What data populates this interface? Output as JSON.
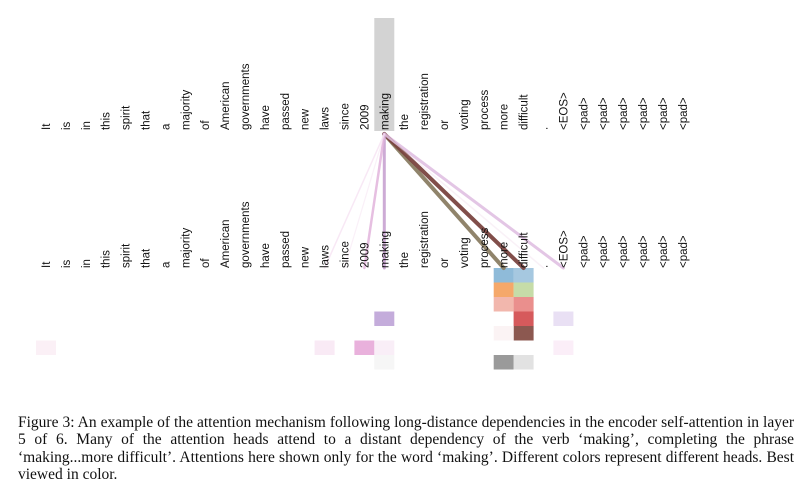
{
  "tokens": [
    "It",
    "is",
    "in",
    "this",
    "spirit",
    "that",
    "a",
    "majority",
    "of",
    "American",
    "governments",
    "have",
    "passed",
    "new",
    "laws",
    "since",
    "2009",
    "making",
    "the",
    "registration",
    "or",
    "voting",
    "process",
    "more",
    "difficult",
    ".",
    "<EOS>",
    "<pad>",
    "<pad>",
    "<pad>",
    "<pad>",
    "<pad>",
    "<pad>"
  ],
  "query_token": "making",
  "attention_links": [
    {
      "target": "more",
      "color": "#8a7d63",
      "opacity": 0.95,
      "width": 4
    },
    {
      "target": "difficult",
      "color": "#7a4540",
      "opacity": 0.95,
      "width": 4
    },
    {
      "target": "<EOS>",
      "color": "#d9b3dc",
      "opacity": 0.75,
      "width": 3
    },
    {
      "target": "making",
      "color": "#c8a2d0",
      "opacity": 0.9,
      "width": 3
    },
    {
      "target": "2009",
      "color": "#e2b4dc",
      "opacity": 0.85,
      "width": 2.5
    },
    {
      "target": "laws",
      "color": "#f3d9ef",
      "opacity": 0.6,
      "width": 1.5
    },
    {
      "target": "since",
      "color": "#f7e6f3",
      "opacity": 0.6,
      "width": 1.2
    },
    {
      "target": ".",
      "color": "#f0dceb",
      "opacity": 0.4,
      "width": 1.5
    }
  ],
  "heatmap_rows": [
    [
      [
        "more",
        "#8fbbd9"
      ],
      [
        "difficult",
        "#a6c8e0"
      ]
    ],
    [
      [
        "more",
        "#f5a86a"
      ],
      [
        "difficult",
        "#c6dca8"
      ]
    ],
    [
      [
        "more",
        "#f2b7ad"
      ],
      [
        "difficult",
        "#ea8f8d"
      ]
    ],
    [
      [
        "making",
        "#c4acdb"
      ],
      [
        "difficult",
        "#d65a5c"
      ],
      [
        "<EOS>",
        "#e9e0f4"
      ]
    ],
    [
      [
        "difficult",
        "#8c5850"
      ],
      [
        "more",
        "#fbf3f4"
      ]
    ],
    [
      [
        "It",
        "#fbf0f6"
      ],
      [
        "laws",
        "#f9eaf5"
      ],
      [
        "2009",
        "#e9b1dc"
      ],
      [
        "making",
        "#f9eef7"
      ],
      [
        "<EOS>",
        "#fbeef8"
      ]
    ],
    [
      [
        "more",
        "#9a9a9a"
      ],
      [
        "difficult",
        "#e2e2e2"
      ],
      [
        "making",
        "#f6f6f6"
      ]
    ]
  ],
  "caption": "Figure 3: An example of the attention mechanism following long-distance dependencies in the encoder self-attention in layer 5 of 6. Many of the attention heads attend to a distant dependency of the verb ‘making’, completing the phrase ‘making...more difficult’. Attentions here shown only for the word ‘making’. Different colors represent different heads. Best viewed in color."
}
